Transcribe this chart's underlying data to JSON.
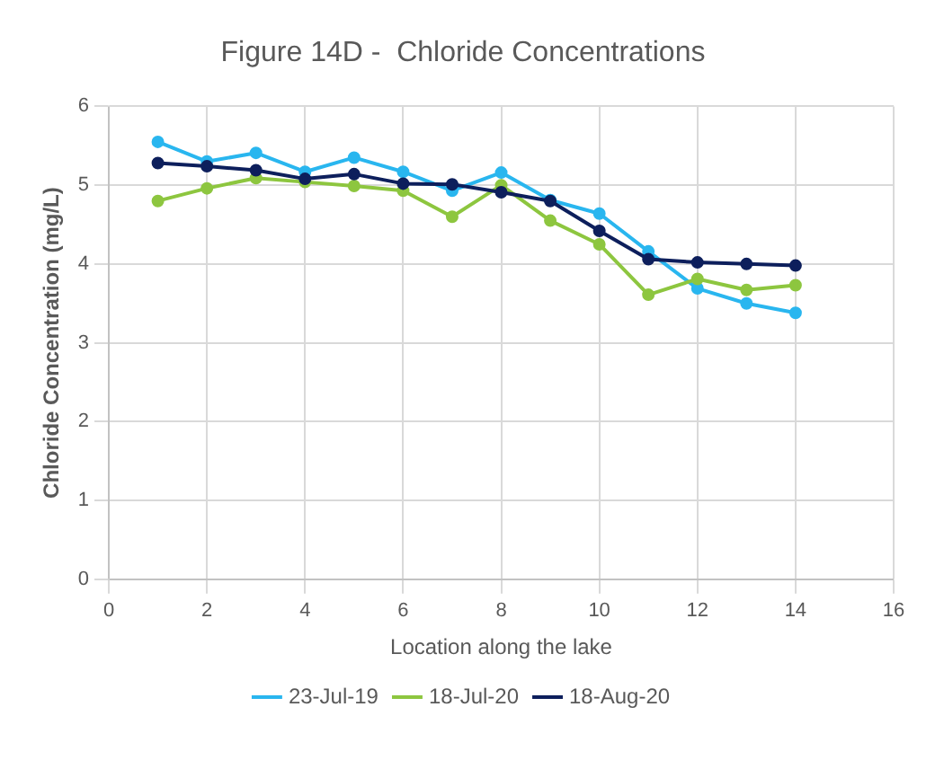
{
  "chart_data": {
    "type": "line",
    "title": "Figure 14D -  Chloride Concentrations",
    "xlabel": "Location along the lake",
    "ylabel": "Chloride Concentration (mg/L)",
    "x": [
      1,
      2,
      3,
      4,
      5,
      6,
      7,
      8,
      9,
      10,
      11,
      12,
      13,
      14
    ],
    "series": [
      {
        "name": "23-Jul-19",
        "color": "#29b6ef",
        "values": [
          5.55,
          5.3,
          5.41,
          5.17,
          5.35,
          5.17,
          4.93,
          5.16,
          4.81,
          4.64,
          4.16,
          3.69,
          3.5,
          3.38
        ]
      },
      {
        "name": "18-Jul-20",
        "color": "#8dc63f",
        "values": [
          4.8,
          4.96,
          5.09,
          5.04,
          4.99,
          4.93,
          4.6,
          5.0,
          4.55,
          4.25,
          3.61,
          3.81,
          3.67,
          3.73
        ]
      },
      {
        "name": "18-Aug-20",
        "color": "#0d1f5c",
        "values": [
          5.28,
          5.24,
          5.19,
          5.08,
          5.14,
          5.02,
          5.01,
          4.91,
          4.8,
          4.42,
          4.06,
          4.02,
          4.0,
          3.98
        ]
      }
    ],
    "xlim": [
      0,
      16
    ],
    "xticks": [
      0,
      2,
      4,
      6,
      8,
      10,
      12,
      14,
      16
    ],
    "ylim": [
      0,
      6
    ],
    "yticks": [
      0,
      1,
      2,
      3,
      4,
      5,
      6
    ],
    "grid": true,
    "legend": "bottom",
    "marker": "circle",
    "line_style": "solid"
  }
}
